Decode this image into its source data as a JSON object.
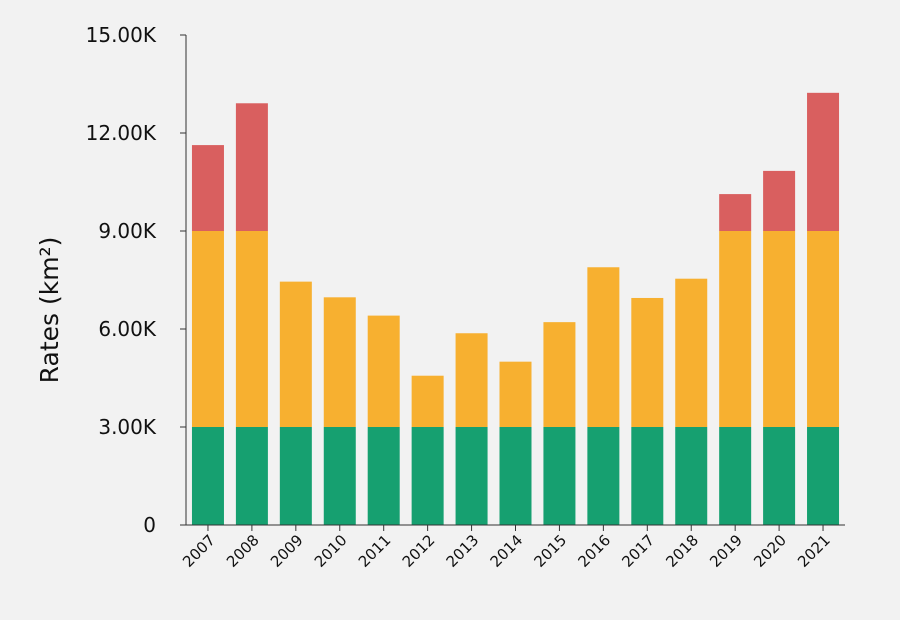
{
  "chart_data": {
    "type": "bar",
    "stacked": true,
    "title": "",
    "xlabel": "",
    "ylabel": "Rates (km²)",
    "ylim": [
      0,
      15000
    ],
    "grid": false,
    "legend": "none",
    "y_ticks": [
      {
        "value": 0,
        "label": "0"
      },
      {
        "value": 3000,
        "label": "3.00K"
      },
      {
        "value": 6000,
        "label": "6.00K"
      },
      {
        "value": 9000,
        "label": "9.00K"
      },
      {
        "value": 12000,
        "label": "12.00K"
      },
      {
        "value": 15000,
        "label": "15.00K"
      }
    ],
    "categories": [
      "2007",
      "2008",
      "2009",
      "2010",
      "2011",
      "2012",
      "2013",
      "2014",
      "2015",
      "2016",
      "2017",
      "2018",
      "2019",
      "2020",
      "2021"
    ],
    "series": [
      {
        "color": "#16a070",
        "values": [
          3000,
          3000,
          3000,
          3000,
          3000,
          3000,
          3000,
          3000,
          3000,
          3000,
          3000,
          3000,
          3000,
          3000,
          3000
        ]
      },
      {
        "color": "#f7b030",
        "values": [
          6000,
          6000,
          4450,
          3970,
          3410,
          1570,
          2870,
          2000,
          3210,
          4890,
          3950,
          4540,
          6000,
          6000,
          6000
        ]
      },
      {
        "color": "#d95f5f",
        "values": [
          2630,
          3910,
          0,
          0,
          0,
          0,
          0,
          0,
          0,
          0,
          0,
          0,
          1130,
          1840,
          4230
        ]
      }
    ]
  }
}
